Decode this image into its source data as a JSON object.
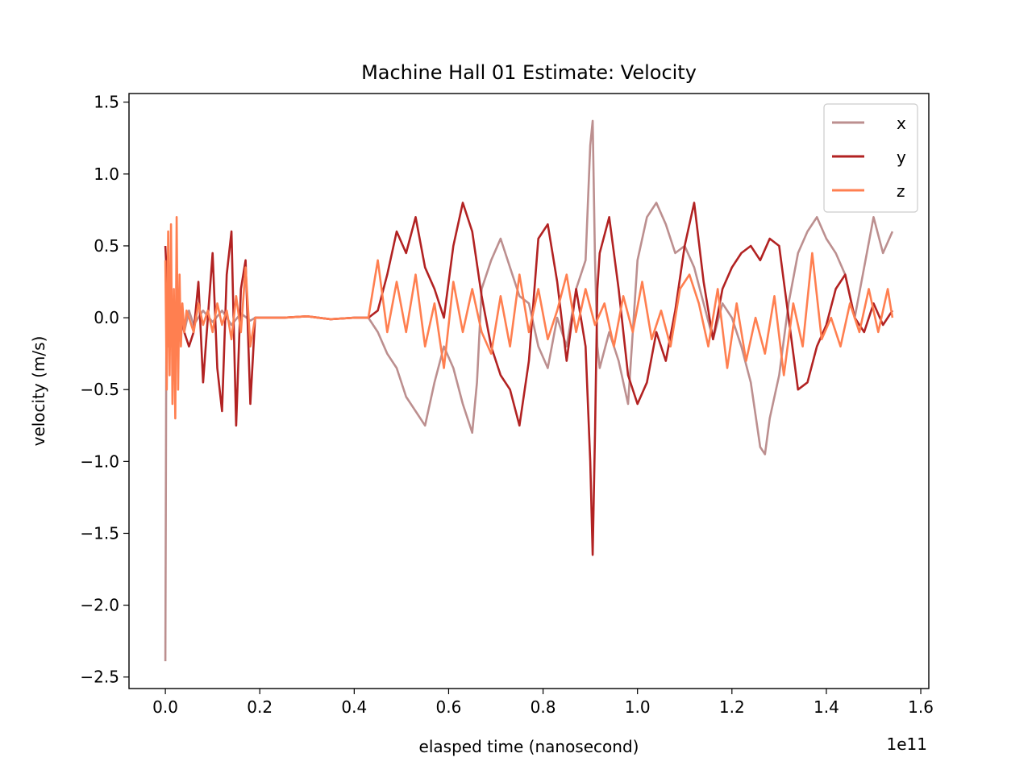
{
  "chart_data": {
    "type": "line",
    "title": "Machine Hall 01 Estimate: Velocity",
    "xlabel": "elasped time (nanosecond)",
    "ylabel": "velocity (m/s)",
    "x_offset_label": "1e11",
    "xlim": [
      -0.077,
      1.617
    ],
    "ylim": [
      -2.58,
      1.56
    ],
    "x_ticks": [
      0.0,
      0.2,
      0.4,
      0.6,
      0.8,
      1.0,
      1.2,
      1.4,
      1.6
    ],
    "x_tick_labels": [
      "0.0",
      "0.2",
      "0.4",
      "0.6",
      "0.8",
      "1.0",
      "1.2",
      "1.4",
      "1.6"
    ],
    "y_ticks": [
      1.5,
      1.0,
      0.5,
      0.0,
      -0.5,
      -1.0,
      -1.5,
      -2.0,
      -2.5
    ],
    "y_tick_labels": [
      "1.5",
      "1.0",
      "0.5",
      "0.0",
      "−0.5",
      "−1.0",
      "−1.5",
      "−2.0",
      "−2.5"
    ],
    "legend_position": "top-right",
    "grid": false,
    "series": [
      {
        "name": "x",
        "color": "#bc8f8f",
        "x": [
          0.0,
          0.002,
          0.004,
          0.006,
          0.01,
          0.02,
          0.03,
          0.04,
          0.05,
          0.06,
          0.08,
          0.1,
          0.12,
          0.14,
          0.16,
          0.18,
          0.19,
          0.2,
          0.25,
          0.3,
          0.35,
          0.4,
          0.43,
          0.45,
          0.47,
          0.49,
          0.51,
          0.53,
          0.55,
          0.57,
          0.59,
          0.61,
          0.63,
          0.65,
          0.66,
          0.67,
          0.69,
          0.71,
          0.73,
          0.75,
          0.77,
          0.79,
          0.81,
          0.83,
          0.85,
          0.87,
          0.89,
          0.9,
          0.905,
          0.91,
          0.915,
          0.92,
          0.94,
          0.96,
          0.98,
          1.0,
          1.02,
          1.04,
          1.06,
          1.08,
          1.1,
          1.12,
          1.14,
          1.16,
          1.18,
          1.2,
          1.22,
          1.24,
          1.26,
          1.27,
          1.28,
          1.3,
          1.32,
          1.34,
          1.36,
          1.38,
          1.4,
          1.42,
          1.44,
          1.46,
          1.48,
          1.5,
          1.52,
          1.54
        ],
        "y": [
          -2.39,
          -0.1,
          0.3,
          -0.2,
          0.05,
          -0.05,
          0.05,
          -0.1,
          0.05,
          -0.05,
          0.05,
          -0.03,
          0.05,
          -0.05,
          0.03,
          -0.02,
          0.0,
          0.0,
          0.0,
          0.01,
          -0.01,
          0.0,
          0.0,
          -0.1,
          -0.25,
          -0.35,
          -0.55,
          -0.65,
          -0.75,
          -0.45,
          -0.2,
          -0.35,
          -0.6,
          -0.8,
          -0.45,
          0.2,
          0.4,
          0.55,
          0.35,
          0.15,
          0.1,
          -0.2,
          -0.35,
          0.0,
          -0.2,
          0.2,
          0.4,
          1.2,
          1.37,
          0.4,
          -0.2,
          -0.35,
          -0.1,
          -0.3,
          -0.6,
          0.4,
          0.7,
          0.8,
          0.65,
          0.45,
          0.5,
          0.35,
          0.1,
          -0.15,
          0.1,
          0.0,
          -0.2,
          -0.45,
          -0.9,
          -0.95,
          -0.7,
          -0.4,
          0.1,
          0.45,
          0.6,
          0.7,
          0.55,
          0.45,
          0.3,
          0.0,
          0.35,
          0.7,
          0.45,
          0.6
        ]
      },
      {
        "name": "y",
        "color": "#b22222",
        "x": [
          0.0,
          0.002,
          0.005,
          0.01,
          0.02,
          0.03,
          0.04,
          0.05,
          0.06,
          0.07,
          0.08,
          0.09,
          0.1,
          0.11,
          0.12,
          0.13,
          0.14,
          0.15,
          0.16,
          0.17,
          0.18,
          0.19,
          0.2,
          0.25,
          0.3,
          0.35,
          0.4,
          0.43,
          0.45,
          0.47,
          0.49,
          0.51,
          0.53,
          0.55,
          0.57,
          0.59,
          0.61,
          0.63,
          0.65,
          0.67,
          0.69,
          0.71,
          0.73,
          0.75,
          0.77,
          0.79,
          0.81,
          0.83,
          0.85,
          0.87,
          0.89,
          0.9,
          0.905,
          0.91,
          0.915,
          0.92,
          0.94,
          0.96,
          0.98,
          1.0,
          1.02,
          1.04,
          1.06,
          1.08,
          1.1,
          1.12,
          1.14,
          1.16,
          1.18,
          1.2,
          1.22,
          1.24,
          1.26,
          1.28,
          1.3,
          1.32,
          1.34,
          1.36,
          1.38,
          1.4,
          1.42,
          1.44,
          1.46,
          1.48,
          1.5,
          1.52,
          1.54
        ],
        "y": [
          0.5,
          0.35,
          0.1,
          -0.1,
          0.05,
          0.1,
          -0.1,
          -0.2,
          -0.1,
          0.25,
          -0.45,
          0.0,
          0.45,
          -0.35,
          -0.65,
          0.3,
          0.6,
          -0.75,
          0.2,
          0.4,
          -0.6,
          0.0,
          0.0,
          0.0,
          0.01,
          -0.01,
          0.0,
          0.0,
          0.05,
          0.3,
          0.6,
          0.45,
          0.7,
          0.35,
          0.2,
          0.0,
          0.5,
          0.8,
          0.6,
          0.15,
          -0.2,
          -0.4,
          -0.5,
          -0.75,
          -0.3,
          0.55,
          0.65,
          0.25,
          -0.3,
          0.2,
          -0.2,
          -1.0,
          -1.65,
          -0.8,
          0.2,
          0.45,
          0.7,
          0.2,
          -0.4,
          -0.6,
          -0.45,
          -0.1,
          -0.3,
          0.05,
          0.5,
          0.8,
          0.25,
          -0.15,
          0.2,
          0.35,
          0.45,
          0.5,
          0.4,
          0.55,
          0.5,
          0.0,
          -0.5,
          -0.45,
          -0.2,
          -0.05,
          0.2,
          0.3,
          0.0,
          -0.1,
          0.1,
          -0.05,
          0.05
        ]
      },
      {
        "name": "z",
        "color": "#ff7f50",
        "x": [
          0.0,
          0.003,
          0.006,
          0.009,
          0.012,
          0.015,
          0.018,
          0.021,
          0.024,
          0.027,
          0.03,
          0.033,
          0.036,
          0.04,
          0.045,
          0.05,
          0.06,
          0.07,
          0.08,
          0.09,
          0.1,
          0.11,
          0.12,
          0.13,
          0.14,
          0.15,
          0.16,
          0.17,
          0.18,
          0.19,
          0.2,
          0.25,
          0.3,
          0.35,
          0.4,
          0.43,
          0.45,
          0.47,
          0.49,
          0.51,
          0.53,
          0.55,
          0.57,
          0.59,
          0.61,
          0.63,
          0.65,
          0.67,
          0.69,
          0.71,
          0.73,
          0.75,
          0.77,
          0.79,
          0.81,
          0.83,
          0.85,
          0.87,
          0.89,
          0.91,
          0.93,
          0.95,
          0.97,
          0.99,
          1.01,
          1.03,
          1.05,
          1.07,
          1.09,
          1.11,
          1.13,
          1.15,
          1.17,
          1.19,
          1.21,
          1.23,
          1.25,
          1.27,
          1.29,
          1.31,
          1.33,
          1.35,
          1.37,
          1.39,
          1.41,
          1.43,
          1.45,
          1.47,
          1.49,
          1.51,
          1.53,
          1.54
        ],
        "y": [
          0.4,
          -0.5,
          0.6,
          -0.4,
          0.65,
          -0.6,
          0.2,
          -0.7,
          0.7,
          -0.5,
          0.3,
          -0.2,
          0.1,
          -0.1,
          0.05,
          0.0,
          -0.1,
          0.1,
          -0.05,
          0.05,
          -0.1,
          0.1,
          -0.05,
          0.05,
          -0.15,
          0.15,
          -0.1,
          0.35,
          -0.2,
          0.0,
          0.0,
          0.0,
          0.01,
          -0.01,
          0.0,
          0.0,
          0.4,
          -0.1,
          0.25,
          -0.1,
          0.3,
          -0.2,
          0.1,
          -0.35,
          0.25,
          -0.1,
          0.2,
          -0.1,
          -0.25,
          0.15,
          -0.2,
          0.3,
          -0.1,
          0.2,
          -0.15,
          0.05,
          0.3,
          -0.1,
          0.2,
          -0.05,
          0.1,
          -0.2,
          0.15,
          -0.1,
          0.25,
          -0.15,
          0.05,
          -0.2,
          0.2,
          0.3,
          0.1,
          -0.2,
          0.2,
          -0.35,
          0.1,
          -0.3,
          0.0,
          -0.25,
          0.15,
          -0.4,
          0.1,
          -0.2,
          0.45,
          -0.15,
          0.0,
          -0.2,
          0.1,
          -0.1,
          0.2,
          -0.1,
          0.2,
          0.0
        ]
      }
    ]
  }
}
